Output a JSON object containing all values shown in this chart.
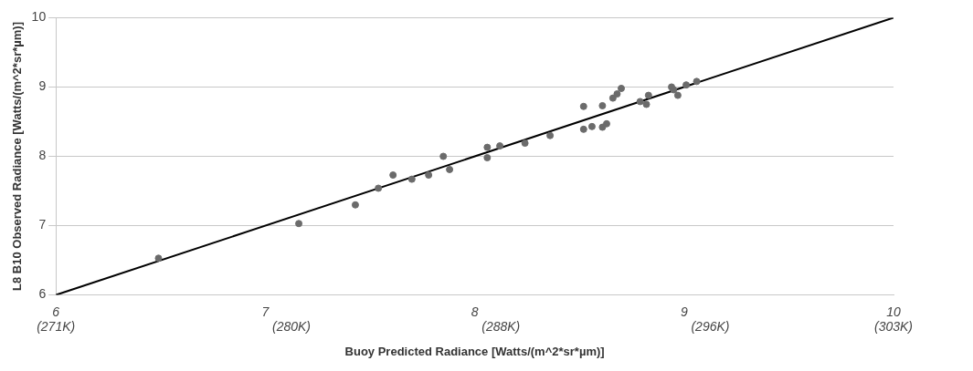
{
  "chart_data": {
    "type": "scatter",
    "xlabel": "Buoy Predicted Radiance [Watts/(m^2*sr*µm)]",
    "ylabel": "L8 B10 Observed Radiance [Watts/(m^2*sr*µm)]",
    "xlim": [
      6,
      10
    ],
    "xticks": [
      6,
      7,
      8,
      9,
      10
    ],
    "x2lim": [
      271,
      303
    ],
    "x2ticks": [
      {
        "value": 271,
        "label": "(271K)"
      },
      {
        "value": 280,
        "label": "(280K)"
      },
      {
        "value": 288,
        "label": "(288K)"
      },
      {
        "value": 296,
        "label": "(296K)"
      },
      {
        "value": 303,
        "label": "(303K)"
      }
    ],
    "ylim": [
      6,
      10
    ],
    "yticks": [
      6,
      7,
      8,
      9,
      10
    ],
    "grid": "y",
    "series": [
      {
        "type": "scatter",
        "marker": "circle",
        "color": "#6b6b6b",
        "x": [
          6.49,
          7.16,
          7.43,
          7.54,
          7.61,
          7.7,
          7.78,
          7.85,
          7.88,
          8.06,
          8.06,
          8.12,
          8.24,
          8.36,
          8.52,
          8.52,
          8.56,
          8.61,
          8.61,
          8.63,
          8.66,
          8.68,
          8.7,
          8.79,
          8.82,
          8.83,
          8.94,
          8.95,
          8.97,
          9.01,
          9.06
        ],
        "values": [
          6.53,
          7.03,
          7.3,
          7.54,
          7.73,
          7.67,
          7.73,
          8.0,
          7.81,
          7.98,
          8.13,
          8.15,
          8.19,
          8.3,
          8.72,
          8.39,
          8.43,
          8.73,
          8.42,
          8.47,
          8.84,
          8.9,
          8.98,
          8.79,
          8.75,
          8.88,
          9.0,
          8.96,
          8.88,
          9.03,
          9.08
        ]
      },
      {
        "type": "line",
        "marker": "none",
        "color": "#000000",
        "x": [
          6,
          10
        ],
        "values": [
          6,
          10
        ]
      }
    ]
  }
}
